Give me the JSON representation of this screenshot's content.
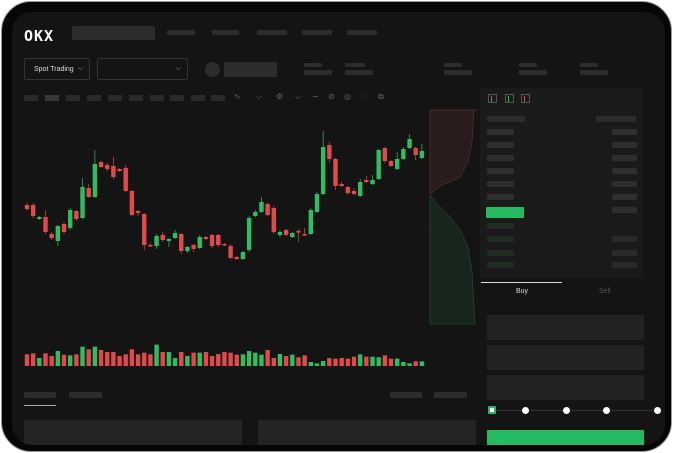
{
  "header": {
    "logo": "OKX"
  },
  "toolbar": {
    "market_selector": "Spot Trading",
    "pair_selector": ""
  },
  "orderbook": {
    "view_icons": [
      "both-sides-icon",
      "bids-only-icon",
      "asks-only-icon"
    ]
  },
  "trade": {
    "tabs": [
      {
        "label": "Buy",
        "active": true
      },
      {
        "label": "Sell",
        "active": false
      }
    ],
    "slider_percent": 0
  },
  "colors": {
    "up": "#2fbd62",
    "down": "#e04a4a",
    "accent": "#25b961",
    "background": "#141414"
  },
  "chart": {
    "type": "candlestick",
    "ohlc": [
      [
        97,
        99,
        91,
        93
      ],
      [
        97,
        99,
        84,
        86
      ],
      [
        83,
        86,
        82,
        85
      ],
      [
        85,
        92,
        68,
        70
      ],
      [
        68,
        70,
        62,
        64
      ],
      [
        61,
        77,
        56,
        76
      ],
      [
        78,
        80,
        68,
        70
      ],
      [
        74,
        94,
        72,
        92
      ],
      [
        91,
        92,
        81,
        83
      ],
      [
        84,
        124,
        83,
        115
      ],
      [
        114,
        118,
        104,
        105
      ],
      [
        105,
        152,
        104,
        138
      ],
      [
        140,
        141,
        134,
        135
      ],
      [
        137,
        139,
        131,
        133
      ],
      [
        136,
        145,
        123,
        125
      ],
      [
        133,
        134,
        130,
        131
      ],
      [
        134,
        137,
        110,
        111
      ],
      [
        111,
        112,
        86,
        87
      ],
      [
        91,
        92,
        86,
        89
      ],
      [
        88,
        89,
        52,
        57
      ],
      [
        57,
        59,
        55,
        56
      ],
      [
        56,
        68,
        53,
        66
      ],
      [
        67,
        70,
        60,
        62
      ],
      [
        61,
        64,
        55,
        63
      ],
      [
        64,
        72,
        63,
        69
      ],
      [
        68,
        69,
        48,
        51
      ],
      [
        51,
        56,
        49,
        55
      ],
      [
        57,
        58,
        50,
        53
      ],
      [
        54,
        67,
        53,
        65
      ],
      [
        65,
        66,
        62,
        63
      ],
      [
        67,
        68,
        54,
        56
      ],
      [
        67,
        68,
        55,
        57
      ],
      [
        58,
        59,
        56,
        57
      ],
      [
        56,
        58,
        43,
        44
      ],
      [
        45,
        46,
        42,
        43
      ],
      [
        43,
        51,
        42,
        50
      ],
      [
        52,
        86,
        50,
        84
      ],
      [
        86,
        92,
        85,
        90
      ],
      [
        90,
        105,
        89,
        100
      ],
      [
        98,
        99,
        86,
        87
      ],
      [
        94,
        96,
        68,
        70
      ],
      [
        67,
        72,
        65,
        70
      ],
      [
        72,
        73,
        66,
        67
      ],
      [
        65,
        70,
        64,
        69
      ],
      [
        71,
        73,
        60,
        70
      ],
      [
        68,
        74,
        66,
        67
      ],
      [
        68,
        94,
        67,
        92
      ],
      [
        90,
        110,
        89,
        108
      ],
      [
        108,
        171,
        107,
        155
      ],
      [
        157,
        160,
        140,
        143
      ],
      [
        143,
        144,
        112,
        116
      ],
      [
        118,
        120,
        115,
        116
      ],
      [
        115,
        116,
        107,
        109
      ],
      [
        111,
        114,
        107,
        108
      ],
      [
        106,
        123,
        105,
        120
      ],
      [
        122,
        126,
        119,
        120
      ],
      [
        118,
        127,
        117,
        122
      ],
      [
        123,
        153,
        122,
        152
      ],
      [
        154,
        155,
        139,
        141
      ],
      [
        141,
        142,
        135,
        136
      ],
      [
        133,
        150,
        132,
        143
      ],
      [
        143,
        155,
        142,
        153
      ],
      [
        154,
        168,
        153,
        163
      ],
      [
        154,
        155,
        142,
        147
      ],
      [
        144,
        158,
        143,
        151
      ]
    ],
    "volume": [
      35,
      38,
      24,
      38,
      30,
      45,
      34,
      32,
      35,
      58,
      50,
      58,
      48,
      42,
      42,
      30,
      35,
      50,
      35,
      40,
      35,
      64,
      42,
      42,
      24,
      42,
      30,
      40,
      40,
      42,
      30,
      36,
      42,
      40,
      34,
      35,
      45,
      40,
      34,
      48,
      24,
      36,
      30,
      34,
      26,
      32,
      12,
      8,
      15,
      24,
      22,
      24,
      22,
      28,
      35,
      28,
      28,
      26,
      32,
      22,
      22,
      12,
      8,
      14,
      14
    ]
  }
}
